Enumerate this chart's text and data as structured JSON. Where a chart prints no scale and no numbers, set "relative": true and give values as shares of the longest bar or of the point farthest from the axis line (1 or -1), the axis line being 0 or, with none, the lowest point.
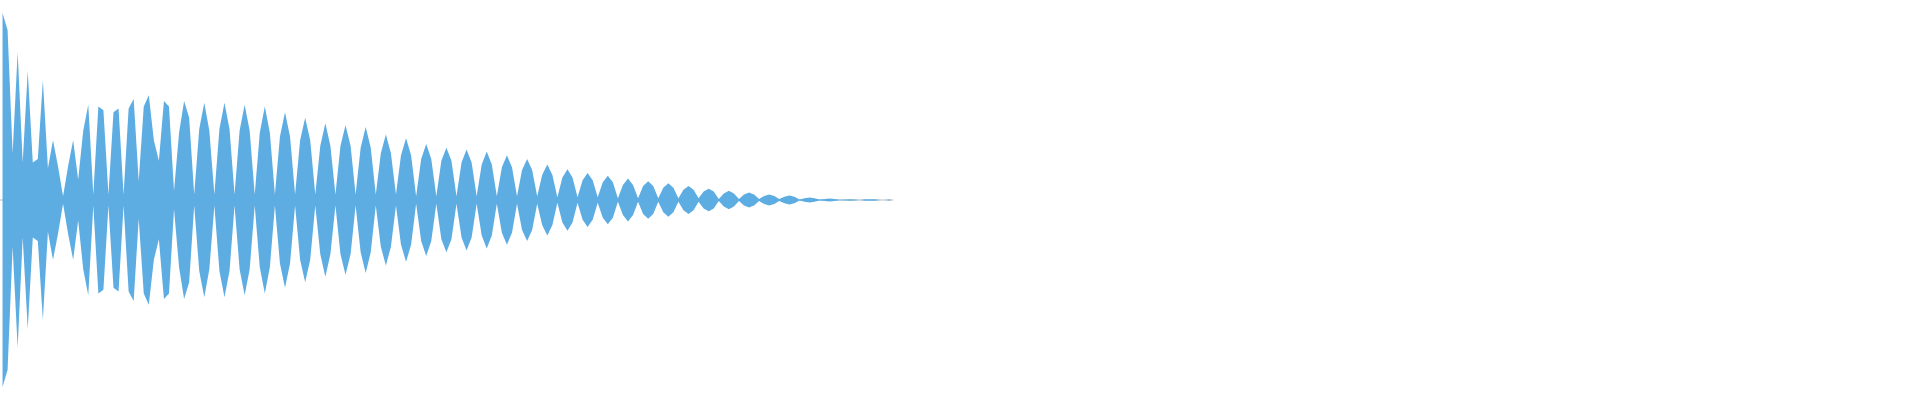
{
  "chart_data": {
    "type": "area",
    "relative": true,
    "categories": [
      null,
      null,
      null,
      null,
      null,
      null,
      null,
      null,
      null,
      null,
      null,
      null,
      null,
      null,
      null,
      null,
      null,
      null,
      null,
      null,
      null,
      null,
      null,
      null,
      null,
      null,
      null,
      null,
      null,
      null,
      null,
      null,
      null,
      null,
      null,
      null,
      null,
      null,
      null,
      null,
      null,
      null,
      null,
      null,
      null,
      null,
      null,
      null,
      null,
      null,
      null,
      null,
      null,
      null,
      null,
      null,
      null,
      null,
      null,
      null,
      null,
      null,
      null,
      null,
      null,
      null,
      null,
      null,
      null,
      null,
      null,
      null,
      null,
      null,
      null,
      null,
      null,
      null,
      null,
      null,
      null,
      null,
      null,
      null,
      null,
      null,
      null,
      null,
      null,
      null,
      null,
      null,
      null,
      null,
      null,
      null,
      null,
      null,
      null,
      null,
      null,
      null,
      null,
      null,
      null,
      null,
      null,
      null,
      null,
      null,
      null,
      null,
      null,
      null,
      null,
      null,
      null,
      null,
      null,
      null,
      null,
      null,
      null,
      null,
      null,
      null,
      null,
      null,
      null,
      null,
      null,
      null,
      null,
      null,
      null,
      null,
      null,
      null,
      null,
      null,
      null,
      null,
      null,
      null,
      null,
      null,
      null,
      null,
      null,
      null,
      null,
      null,
      null,
      null,
      null,
      null,
      null,
      null,
      null,
      null,
      null,
      null,
      null,
      null,
      null,
      null,
      null,
      null,
      null,
      null,
      null,
      null,
      null,
      null,
      null,
      null,
      null
    ],
    "series": [
      {
        "color": "#5dade2",
        "values": [
          1.0,
          0.91,
          0.25,
          0.79,
          0.2,
          0.69,
          0.2,
          0.22,
          0.64,
          0.17,
          0.32,
          0.18,
          0.02,
          0.18,
          0.32,
          0.11,
          0.37,
          0.51,
          0.03,
          0.5,
          0.48,
          0.03,
          0.47,
          0.49,
          0.03,
          0.49,
          0.54,
          0.1,
          0.5,
          0.56,
          0.32,
          0.21,
          0.53,
          0.5,
          0.05,
          0.36,
          0.53,
          0.44,
          0.03,
          0.38,
          0.52,
          0.37,
          0.03,
          0.38,
          0.52,
          0.38,
          0.03,
          0.37,
          0.51,
          0.37,
          0.03,
          0.36,
          0.5,
          0.36,
          0.03,
          0.34,
          0.47,
          0.34,
          0.03,
          0.32,
          0.44,
          0.32,
          0.03,
          0.29,
          0.41,
          0.29,
          0.03,
          0.29,
          0.4,
          0.29,
          0.03,
          0.28,
          0.39,
          0.28,
          0.03,
          0.25,
          0.35,
          0.25,
          0.03,
          0.24,
          0.33,
          0.24,
          0.02,
          0.22,
          0.3,
          0.22,
          0.02,
          0.21,
          0.28,
          0.21,
          0.02,
          0.2,
          0.27,
          0.2,
          0.02,
          0.19,
          0.26,
          0.19,
          0.02,
          0.175,
          0.24,
          0.175,
          0.02,
          0.16,
          0.22,
          0.16,
          0.02,
          0.135,
          0.19,
          0.135,
          0.015,
          0.12,
          0.165,
          0.12,
          0.015,
          0.105,
          0.145,
          0.105,
          0.015,
          0.095,
          0.13,
          0.095,
          0.01,
          0.08,
          0.115,
          0.08,
          0.01,
          0.075,
          0.1,
          0.075,
          0.01,
          0.065,
          0.09,
          0.065,
          0.01,
          0.055,
          0.075,
          0.055,
          0.01,
          0.045,
          0.06,
          0.045,
          0.005,
          0.035,
          0.05,
          0.035,
          0.005,
          0.03,
          0.04,
          0.03,
          0.005,
          0.022,
          0.03,
          0.022,
          0.005,
          0.017,
          0.024,
          0.017,
          0.003,
          0.009,
          0.013,
          0.009,
          0.003,
          0.006,
          0.008,
          0.006,
          0.002,
          0.003,
          0.004,
          0.003,
          0,
          0.004,
          0.004,
          0.004,
          0,
          0,
          0.004
        ]
      },
      {
        "color": "#5dade3",
        "values": [
          -1.0,
          -0.91,
          -0.25,
          -0.79,
          -0.2,
          -0.69,
          -0.2,
          -0.22,
          -0.64,
          -0.17,
          -0.32,
          -0.18,
          -0.02,
          -0.18,
          -0.32,
          -0.11,
          -0.37,
          -0.51,
          -0.03,
          -0.5,
          -0.48,
          -0.03,
          -0.47,
          -0.49,
          -0.03,
          -0.49,
          -0.54,
          -0.1,
          -0.5,
          -0.56,
          -0.32,
          -0.21,
          -0.53,
          -0.5,
          -0.05,
          -0.36,
          -0.53,
          -0.44,
          -0.03,
          -0.38,
          -0.52,
          -0.37,
          -0.03,
          -0.38,
          -0.52,
          -0.38,
          -0.03,
          -0.37,
          -0.51,
          -0.37,
          -0.03,
          -0.36,
          -0.5,
          -0.36,
          -0.03,
          -0.34,
          -0.47,
          -0.34,
          -0.03,
          -0.32,
          -0.44,
          -0.32,
          -0.03,
          -0.29,
          -0.41,
          -0.29,
          -0.03,
          -0.29,
          -0.4,
          -0.29,
          -0.03,
          -0.28,
          -0.39,
          -0.28,
          -0.03,
          -0.25,
          -0.35,
          -0.25,
          -0.03,
          -0.24,
          -0.33,
          -0.24,
          -0.02,
          -0.22,
          -0.3,
          -0.22,
          -0.02,
          -0.21,
          -0.28,
          -0.21,
          -0.02,
          -0.2,
          -0.27,
          -0.2,
          -0.02,
          -0.19,
          -0.26,
          -0.19,
          -0.02,
          -0.175,
          -0.24,
          -0.175,
          -0.02,
          -0.16,
          -0.22,
          -0.16,
          -0.02,
          -0.135,
          -0.19,
          -0.135,
          -0.015,
          -0.12,
          -0.165,
          -0.12,
          -0.015,
          -0.105,
          -0.145,
          -0.105,
          -0.015,
          -0.095,
          -0.13,
          -0.095,
          -0.01,
          -0.08,
          -0.115,
          -0.08,
          -0.01,
          -0.075,
          -0.1,
          -0.075,
          -0.01,
          -0.065,
          -0.09,
          -0.065,
          -0.01,
          -0.055,
          -0.075,
          -0.055,
          -0.01,
          -0.045,
          -0.06,
          -0.045,
          -0.005,
          -0.035,
          -0.05,
          -0.035,
          -0.005,
          -0.03,
          -0.04,
          -0.03,
          -0.005,
          -0.022,
          -0.03,
          -0.022,
          -0.005,
          -0.017,
          -0.024,
          -0.017,
          -0.003,
          -0.009,
          -0.013,
          -0.009,
          -0.003,
          -0.006,
          -0.008,
          -0.006,
          -0.002,
          -0.003,
          -0.004,
          -0.003,
          0,
          -0.004,
          -0.004,
          -0.004,
          0,
          0,
          -0.004
        ]
      }
    ]
  }
}
